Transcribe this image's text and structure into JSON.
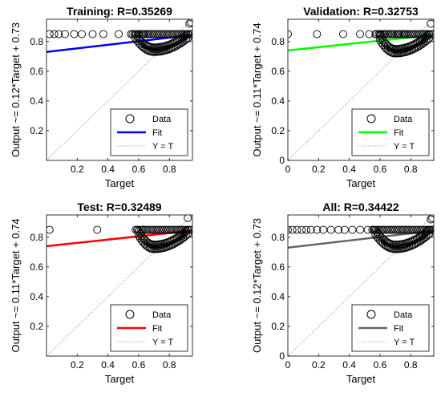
{
  "colors": {
    "target_line": "#999999",
    "data_marker": "#000000",
    "axes": "#000000",
    "background": "#ffffff"
  },
  "chart_data": [
    {
      "type": "scatter",
      "title": "Training: R=0.35269",
      "xlabel": "Target",
      "ylabel": "Output ~= 0.12*Target + 0.73",
      "xlim": [
        0,
        0.95
      ],
      "ylim": [
        0,
        0.95
      ],
      "xticks": [
        "0.2",
        "0.4",
        "0.6",
        "0.8"
      ],
      "yticks": [
        "0.2",
        "0.4",
        "0.6",
        "0.8"
      ],
      "fit": {
        "slope": 0.12,
        "intercept": 0.73,
        "color": "#0000ff"
      },
      "legend": {
        "position": "bottom-right",
        "labels": [
          "Data",
          "Fit",
          "Y = T"
        ]
      },
      "isolated_points": [
        [
          0.02,
          0.85
        ],
        [
          0.05,
          0.85
        ],
        [
          0.08,
          0.85
        ],
        [
          0.12,
          0.85
        ],
        [
          0.18,
          0.85
        ],
        [
          0.23,
          0.85
        ],
        [
          0.3,
          0.85
        ],
        [
          0.37,
          0.85
        ],
        [
          0.47,
          0.85
        ],
        [
          0.55,
          0.85
        ],
        [
          0.6,
          0.85
        ],
        [
          0.63,
          0.85
        ],
        [
          0.66,
          0.85
        ],
        [
          0.93,
          0.92
        ],
        [
          0.94,
          0.93
        ]
      ],
      "cluster": {
        "x_start": 0.56,
        "x_end": 0.95,
        "y_top": 0.85,
        "x_min": 0.7,
        "y_min": 0.73
      }
    },
    {
      "type": "scatter",
      "title": "Validation: R=0.32753",
      "xlabel": "Target",
      "ylabel": "Output ~= 0.11*Target + 0.74",
      "xlim": [
        0,
        0.95
      ],
      "ylim": [
        0,
        0.95
      ],
      "xticks": [
        "0",
        "0.2",
        "0.4",
        "0.6",
        "0.8"
      ],
      "yticks": [
        "0",
        "0.2",
        "0.4",
        "0.6",
        "0.8"
      ],
      "fit": {
        "slope": 0.11,
        "intercept": 0.74,
        "color": "#00ff00"
      },
      "legend": {
        "position": "bottom-right",
        "labels": [
          "Data",
          "Fit",
          "Y = T"
        ]
      },
      "isolated_points": [
        [
          0.0,
          0.85
        ],
        [
          0.19,
          0.85
        ],
        [
          0.36,
          0.85
        ],
        [
          0.47,
          0.85
        ],
        [
          0.53,
          0.85
        ],
        [
          0.57,
          0.85
        ],
        [
          0.6,
          0.85
        ],
        [
          0.63,
          0.85
        ],
        [
          0.67,
          0.85
        ],
        [
          0.72,
          0.85
        ],
        [
          0.76,
          0.85
        ],
        [
          0.93,
          0.92
        ]
      ],
      "cluster": {
        "x_start": 0.58,
        "x_end": 0.95,
        "y_top": 0.85,
        "x_min": 0.7,
        "y_min": 0.72
      }
    },
    {
      "type": "scatter",
      "title": "Test: R=0.32489",
      "xlabel": "Target",
      "ylabel": "Output ~= 0.11*Target + 0.74",
      "xlim": [
        0,
        0.95
      ],
      "ylim": [
        0,
        0.95
      ],
      "xticks": [
        "0.2",
        "0.4",
        "0.6",
        "0.8"
      ],
      "yticks": [
        "0.2",
        "0.4",
        "0.6",
        "0.8"
      ],
      "fit": {
        "slope": 0.11,
        "intercept": 0.74,
        "color": "#ff0000"
      },
      "legend": {
        "position": "bottom-right",
        "labels": [
          "Data",
          "Fit",
          "Y = T"
        ]
      },
      "isolated_points": [
        [
          0.02,
          0.85
        ],
        [
          0.33,
          0.85
        ],
        [
          0.59,
          0.85
        ],
        [
          0.63,
          0.85
        ],
        [
          0.92,
          0.93
        ]
      ],
      "cluster": {
        "x_start": 0.58,
        "x_end": 0.95,
        "y_top": 0.85,
        "x_min": 0.7,
        "y_min": 0.72
      }
    },
    {
      "type": "scatter",
      "title": "All: R=0.34422",
      "xlabel": "Target",
      "ylabel": "Output ~= 0.12*Target + 0.73",
      "xlim": [
        0,
        0.95
      ],
      "ylim": [
        0,
        0.95
      ],
      "xticks": [
        "0",
        "0.2",
        "0.4",
        "0.6",
        "0.8"
      ],
      "yticks": [
        "0",
        "0.2",
        "0.4",
        "0.6",
        "0.8"
      ],
      "fit": {
        "slope": 0.12,
        "intercept": 0.73,
        "color": "#666666"
      },
      "legend": {
        "position": "bottom-right",
        "labels": [
          "Data",
          "Fit",
          "Y = T"
        ]
      },
      "isolated_points": [
        [
          0.0,
          0.85
        ],
        [
          0.03,
          0.85
        ],
        [
          0.06,
          0.85
        ],
        [
          0.09,
          0.85
        ],
        [
          0.12,
          0.85
        ],
        [
          0.15,
          0.85
        ],
        [
          0.19,
          0.85
        ],
        [
          0.23,
          0.85
        ],
        [
          0.28,
          0.85
        ],
        [
          0.33,
          0.85
        ],
        [
          0.37,
          0.85
        ],
        [
          0.42,
          0.85
        ],
        [
          0.47,
          0.85
        ],
        [
          0.52,
          0.85
        ],
        [
          0.56,
          0.85
        ],
        [
          0.93,
          0.92
        ],
        [
          0.94,
          0.93
        ]
      ],
      "cluster": {
        "x_start": 0.55,
        "x_end": 0.95,
        "y_top": 0.85,
        "x_min": 0.7,
        "y_min": 0.72
      }
    }
  ]
}
